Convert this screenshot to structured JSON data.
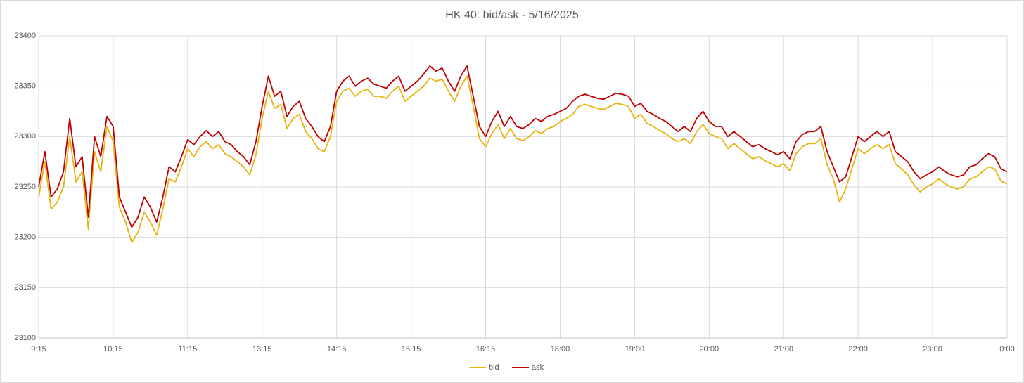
{
  "chart_data": {
    "type": "line",
    "title": "HK 40: bid/ask - 5/16/2025",
    "categories": [
      "9:15",
      null,
      null,
      null,
      null,
      null,
      null,
      null,
      null,
      null,
      null,
      null,
      "10:15",
      null,
      null,
      null,
      null,
      null,
      null,
      null,
      null,
      null,
      null,
      null,
      "11:15",
      null,
      null,
      null,
      null,
      null,
      null,
      null,
      null,
      null,
      null,
      null,
      "13:15",
      null,
      null,
      null,
      null,
      null,
      null,
      null,
      null,
      null,
      null,
      null,
      "14:15",
      null,
      null,
      null,
      null,
      null,
      null,
      null,
      null,
      null,
      null,
      null,
      "15:15",
      null,
      null,
      null,
      null,
      null,
      null,
      null,
      null,
      null,
      null,
      null,
      "16:15",
      null,
      null,
      null,
      null,
      null,
      null,
      null,
      null,
      null,
      null,
      null,
      "18:00",
      null,
      null,
      null,
      null,
      null,
      null,
      null,
      null,
      null,
      null,
      null,
      "19:00",
      null,
      null,
      null,
      null,
      null,
      null,
      null,
      null,
      null,
      null,
      null,
      "20:00",
      null,
      null,
      null,
      null,
      null,
      null,
      null,
      null,
      null,
      null,
      null,
      "21:00",
      null,
      null,
      null,
      null,
      null,
      null,
      null,
      null,
      null,
      null,
      null,
      "22:00",
      null,
      null,
      null,
      null,
      null,
      null,
      null,
      null,
      null,
      null,
      null,
      "23:00",
      null,
      null,
      null,
      null,
      null,
      null,
      null,
      null,
      null,
      null,
      null,
      "0:00"
    ],
    "series": [
      {
        "name": "bid",
        "color": "#e8b410",
        "values": [
          23240,
          23275,
          23228,
          23235,
          23250,
          23300,
          23255,
          23265,
          23208,
          23285,
          23265,
          23310,
          23295,
          23230,
          23215,
          23195,
          23205,
          23225,
          23215,
          23202,
          23228,
          23258,
          23255,
          23270,
          23288,
          23280,
          23290,
          23295,
          23288,
          23292,
          23283,
          23280,
          23275,
          23270,
          23262,
          23282,
          23318,
          23345,
          23328,
          23332,
          23308,
          23318,
          23322,
          23305,
          23298,
          23288,
          23285,
          23300,
          23335,
          23345,
          23348,
          23340,
          23345,
          23347,
          23340,
          23340,
          23338,
          23345,
          23350,
          23335,
          23340,
          23345,
          23350,
          23358,
          23355,
          23357,
          23345,
          23335,
          23350,
          23360,
          23330,
          23298,
          23290,
          23303,
          23312,
          23298,
          23308,
          23298,
          23296,
          23300,
          23306,
          23303,
          23308,
          23310,
          23315,
          23318,
          23322,
          23330,
          23332,
          23330,
          23328,
          23327,
          23330,
          23333,
          23332,
          23330,
          23318,
          23322,
          23313,
          23310,
          23306,
          23303,
          23298,
          23295,
          23298,
          23293,
          23305,
          23312,
          23303,
          23300,
          23298,
          23288,
          23293,
          23288,
          23283,
          23278,
          23280,
          23276,
          23273,
          23270,
          23273,
          23266,
          23283,
          23290,
          23293,
          23293,
          23298,
          23272,
          23258,
          23235,
          23248,
          23268,
          23288,
          23283,
          23288,
          23292,
          23288,
          23292,
          23273,
          23268,
          23262,
          23252,
          23245,
          23250,
          23253,
          23258,
          23253,
          23250,
          23248,
          23250,
          23258,
          23260,
          23265,
          23270,
          23268,
          23256,
          23253
        ]
      },
      {
        "name": "ask",
        "color": "#c00000",
        "values": [
          23250,
          23285,
          23240,
          23248,
          23265,
          23318,
          23270,
          23280,
          23220,
          23300,
          23280,
          23320,
          23310,
          23240,
          23225,
          23210,
          23220,
          23240,
          23230,
          23215,
          23240,
          23270,
          23265,
          23280,
          23297,
          23292,
          23300,
          23306,
          23300,
          23305,
          23295,
          23292,
          23285,
          23280,
          23272,
          23295,
          23330,
          23360,
          23340,
          23345,
          23320,
          23330,
          23335,
          23318,
          23310,
          23300,
          23295,
          23310,
          23345,
          23355,
          23360,
          23350,
          23355,
          23358,
          23352,
          23350,
          23348,
          23355,
          23360,
          23345,
          23350,
          23355,
          23362,
          23370,
          23365,
          23368,
          23355,
          23345,
          23360,
          23370,
          23340,
          23310,
          23300,
          23315,
          23325,
          23310,
          23320,
          23310,
          23308,
          23312,
          23318,
          23315,
          23320,
          23322,
          23325,
          23328,
          23335,
          23340,
          23342,
          23340,
          23338,
          23337,
          23340,
          23343,
          23342,
          23340,
          23330,
          23333,
          23325,
          23322,
          23318,
          23315,
          23310,
          23305,
          23310,
          23305,
          23318,
          23325,
          23315,
          23310,
          23310,
          23300,
          23305,
          23300,
          23295,
          23290,
          23292,
          23288,
          23285,
          23282,
          23285,
          23278,
          23295,
          23302,
          23305,
          23305,
          23310,
          23285,
          23270,
          23255,
          23260,
          23280,
          23300,
          23295,
          23300,
          23305,
          23300,
          23305,
          23285,
          23280,
          23275,
          23265,
          23258,
          23262,
          23265,
          23270,
          23265,
          23262,
          23260,
          23262,
          23270,
          23272,
          23278,
          23283,
          23280,
          23268,
          23265
        ]
      }
    ],
    "ylim": [
      23100,
      23400
    ],
    "yticks": [
      23100,
      23150,
      23200,
      23250,
      23300,
      23350,
      23400
    ],
    "grid": true,
    "legend": "bottom"
  }
}
